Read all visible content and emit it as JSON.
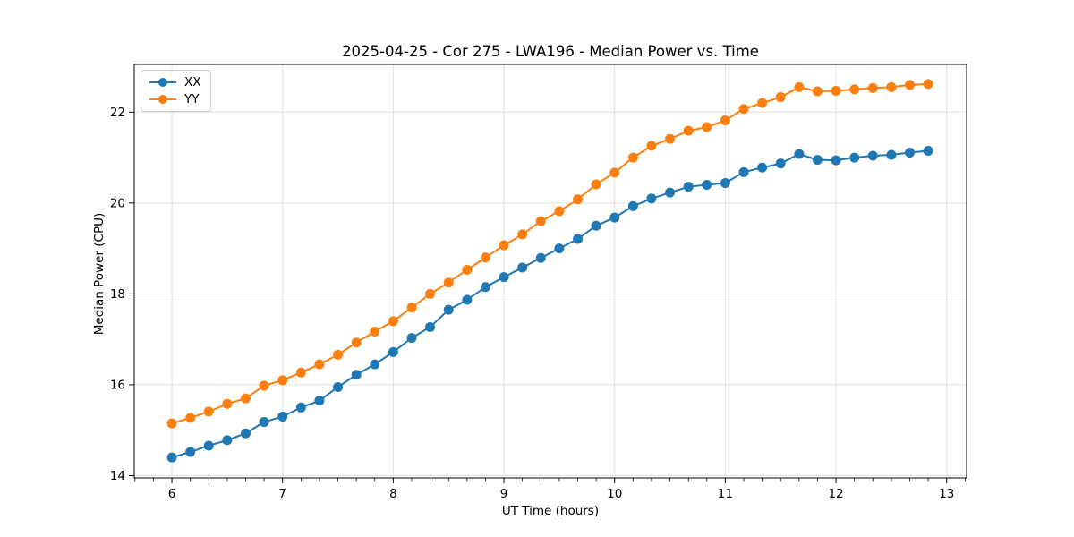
{
  "chart_data": {
    "type": "line",
    "title": "2025-04-25 - Cor 275 - LWA196 - Median Power vs. Time",
    "xlabel": "UT Time (hours)",
    "ylabel": "Median Power (CPU)",
    "xlim": [
      5.66,
      13.18
    ],
    "ylim": [
      13.95,
      23.05
    ],
    "xticks": [
      6,
      7,
      8,
      9,
      10,
      11,
      12,
      13
    ],
    "yticks": [
      14,
      16,
      18,
      20,
      22
    ],
    "x_minor_tick_step": 0.1667,
    "grid": true,
    "legend_position": "upper-left",
    "x": [
      6.0,
      6.167,
      6.333,
      6.5,
      6.667,
      6.833,
      7.0,
      7.167,
      7.333,
      7.5,
      7.667,
      7.833,
      8.0,
      8.167,
      8.333,
      8.5,
      8.667,
      8.833,
      9.0,
      9.167,
      9.333,
      9.5,
      9.667,
      9.833,
      10.0,
      10.167,
      10.333,
      10.5,
      10.667,
      10.833,
      11.0,
      11.167,
      11.333,
      11.5,
      11.667,
      11.833,
      12.0,
      12.167,
      12.333,
      12.5,
      12.667,
      12.833
    ],
    "series": [
      {
        "name": "XX",
        "color": "#1f77b4",
        "values": [
          14.4,
          14.52,
          14.66,
          14.78,
          14.93,
          15.18,
          15.3,
          15.5,
          15.65,
          15.95,
          16.22,
          16.45,
          16.72,
          17.03,
          17.27,
          17.65,
          17.87,
          18.15,
          18.37,
          18.58,
          18.79,
          19.0,
          19.21,
          19.5,
          19.68,
          19.93,
          20.1,
          20.23,
          20.36,
          20.4,
          20.44,
          20.68,
          20.78,
          20.87,
          21.08,
          20.95,
          20.94,
          21.0,
          21.04,
          21.06,
          21.11,
          21.15
        ]
      },
      {
        "name": "YY",
        "color": "#ff7f0e",
        "values": [
          15.15,
          15.27,
          15.41,
          15.58,
          15.7,
          15.98,
          16.1,
          16.27,
          16.45,
          16.66,
          16.93,
          17.17,
          17.4,
          17.7,
          18.0,
          18.25,
          18.53,
          18.8,
          19.07,
          19.31,
          19.6,
          19.82,
          20.08,
          20.41,
          20.67,
          21.0,
          21.26,
          21.41,
          21.59,
          21.67,
          21.82,
          22.07,
          22.2,
          22.33,
          22.55,
          22.46,
          22.47,
          22.5,
          22.53,
          22.55,
          22.6,
          22.62
        ]
      }
    ]
  },
  "style": {
    "grid_color": "#e0e0e0",
    "spine_color": "#000000",
    "tick_color": "#000000",
    "tick_label_color": "#000000",
    "background": "#ffffff"
  },
  "legend": {
    "items": [
      {
        "label": "XX"
      },
      {
        "label": "YY"
      }
    ]
  }
}
